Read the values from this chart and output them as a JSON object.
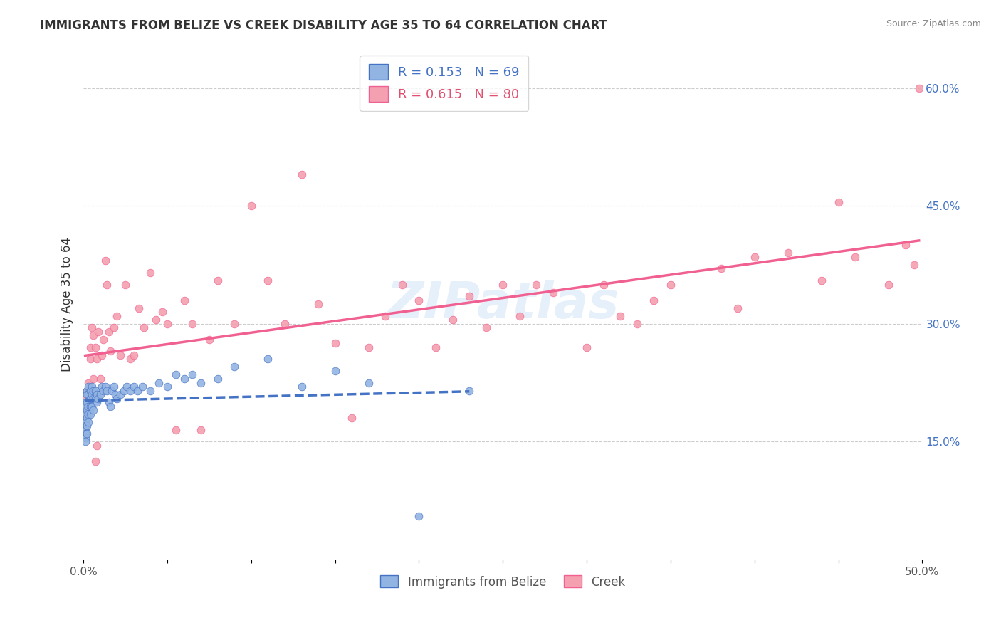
{
  "title": "IMMIGRANTS FROM BELIZE VS CREEK DISABILITY AGE 35 TO 64 CORRELATION CHART",
  "source": "Source: ZipAtlas.com",
  "xlabel_bottom": "",
  "ylabel": "Disability Age 35 to 64",
  "x_min": 0.0,
  "x_max": 0.5,
  "y_min": 0.0,
  "y_max": 0.65,
  "x_ticks": [
    0.0,
    0.05,
    0.1,
    0.15,
    0.2,
    0.25,
    0.3,
    0.35,
    0.4,
    0.45,
    0.5
  ],
  "x_tick_labels": [
    "0.0%",
    "",
    "",
    "",
    "",
    "",
    "",
    "",
    "",
    "",
    "50.0%"
  ],
  "y_ticks_right": [
    0.15,
    0.3,
    0.45,
    0.6
  ],
  "y_tick_labels_right": [
    "15.0%",
    "30.0%",
    "45.0%",
    "60.0%"
  ],
  "belize_color": "#92b4e3",
  "creek_color": "#f4a0b0",
  "belize_line_color": "#4472c4",
  "creek_line_color": "#f06090",
  "belize_R": 0.153,
  "belize_N": 69,
  "creek_R": 0.615,
  "creek_N": 80,
  "watermark": "ZIPatlas",
  "belize_x": [
    0.001,
    0.001,
    0.001,
    0.001,
    0.001,
    0.001,
    0.001,
    0.001,
    0.001,
    0.002,
    0.002,
    0.002,
    0.002,
    0.002,
    0.002,
    0.002,
    0.003,
    0.003,
    0.003,
    0.003,
    0.003,
    0.004,
    0.004,
    0.004,
    0.004,
    0.005,
    0.005,
    0.005,
    0.006,
    0.006,
    0.006,
    0.007,
    0.007,
    0.008,
    0.008,
    0.009,
    0.01,
    0.011,
    0.012,
    0.013,
    0.014,
    0.015,
    0.016,
    0.017,
    0.018,
    0.019,
    0.02,
    0.022,
    0.024,
    0.026,
    0.028,
    0.03,
    0.032,
    0.035,
    0.04,
    0.045,
    0.05,
    0.055,
    0.06,
    0.065,
    0.07,
    0.08,
    0.09,
    0.11,
    0.13,
    0.15,
    0.17,
    0.2,
    0.23
  ],
  "belize_y": [
    0.2,
    0.195,
    0.185,
    0.175,
    0.17,
    0.165,
    0.16,
    0.155,
    0.15,
    0.215,
    0.21,
    0.2,
    0.19,
    0.18,
    0.17,
    0.16,
    0.22,
    0.21,
    0.195,
    0.185,
    0.175,
    0.215,
    0.205,
    0.195,
    0.185,
    0.22,
    0.21,
    0.195,
    0.215,
    0.205,
    0.19,
    0.215,
    0.205,
    0.21,
    0.2,
    0.205,
    0.21,
    0.22,
    0.215,
    0.22,
    0.215,
    0.2,
    0.195,
    0.215,
    0.22,
    0.21,
    0.205,
    0.21,
    0.215,
    0.22,
    0.215,
    0.22,
    0.215,
    0.22,
    0.215,
    0.225,
    0.22,
    0.235,
    0.23,
    0.235,
    0.225,
    0.23,
    0.245,
    0.255,
    0.22,
    0.24,
    0.225,
    0.055,
    0.215
  ],
  "creek_x": [
    0.001,
    0.001,
    0.001,
    0.002,
    0.002,
    0.003,
    0.003,
    0.004,
    0.004,
    0.005,
    0.005,
    0.006,
    0.006,
    0.007,
    0.007,
    0.008,
    0.008,
    0.009,
    0.01,
    0.011,
    0.012,
    0.013,
    0.014,
    0.015,
    0.016,
    0.018,
    0.02,
    0.022,
    0.025,
    0.028,
    0.03,
    0.033,
    0.036,
    0.04,
    0.043,
    0.047,
    0.05,
    0.055,
    0.06,
    0.065,
    0.07,
    0.075,
    0.08,
    0.09,
    0.1,
    0.11,
    0.12,
    0.13,
    0.14,
    0.15,
    0.16,
    0.17,
    0.18,
    0.19,
    0.2,
    0.21,
    0.22,
    0.23,
    0.24,
    0.25,
    0.26,
    0.27,
    0.28,
    0.3,
    0.31,
    0.32,
    0.33,
    0.34,
    0.35,
    0.38,
    0.39,
    0.4,
    0.42,
    0.44,
    0.45,
    0.46,
    0.48,
    0.49,
    0.495,
    0.498
  ],
  "creek_y": [
    0.205,
    0.195,
    0.185,
    0.215,
    0.2,
    0.225,
    0.21,
    0.27,
    0.255,
    0.21,
    0.295,
    0.23,
    0.285,
    0.125,
    0.27,
    0.255,
    0.145,
    0.29,
    0.23,
    0.26,
    0.28,
    0.38,
    0.35,
    0.29,
    0.265,
    0.295,
    0.31,
    0.26,
    0.35,
    0.255,
    0.26,
    0.32,
    0.295,
    0.365,
    0.305,
    0.315,
    0.3,
    0.165,
    0.33,
    0.3,
    0.165,
    0.28,
    0.355,
    0.3,
    0.45,
    0.355,
    0.3,
    0.49,
    0.325,
    0.275,
    0.18,
    0.27,
    0.31,
    0.35,
    0.33,
    0.27,
    0.305,
    0.335,
    0.295,
    0.35,
    0.31,
    0.35,
    0.34,
    0.27,
    0.35,
    0.31,
    0.3,
    0.33,
    0.35,
    0.37,
    0.32,
    0.385,
    0.39,
    0.355,
    0.455,
    0.385,
    0.35,
    0.4,
    0.375,
    0.6
  ]
}
